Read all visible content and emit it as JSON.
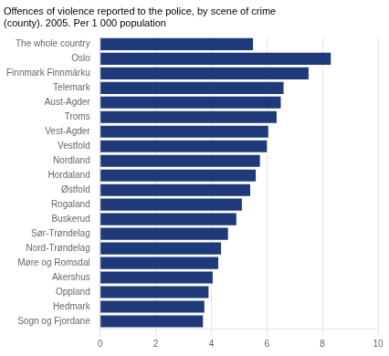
{
  "chart_data": {
    "type": "bar",
    "orientation": "horizontal",
    "title": [
      "Offences of violence reported to the police, by scene of crime",
      "(county). 2005. Per 1 000 population"
    ],
    "categories": [
      "Sogn og Fjordane",
      "Hedmark",
      "Oppland",
      "Akershus",
      "Møre og Romsdal",
      "Nord-Trøndelag",
      "Sør-Trøndelag",
      "Buskerud",
      "Rogaland",
      "Østfold",
      "Hordaland",
      "Nordland",
      "Vestfold",
      "Vest-Agder",
      "Troms",
      "Aust-Agder",
      "Telemark",
      "Finnmark Finnmárku",
      "Oslo",
      "The whole country"
    ],
    "values": [
      3.7,
      3.75,
      3.9,
      4.05,
      4.25,
      4.35,
      4.6,
      4.9,
      5.1,
      5.4,
      5.6,
      5.75,
      6.0,
      6.05,
      6.35,
      6.5,
      6.6,
      7.5,
      8.3,
      5.5
    ],
    "color": "#1f3a7a",
    "xlim": [
      0,
      10
    ],
    "xticks": [
      0,
      2,
      4,
      6,
      8,
      10
    ],
    "grid": true
  }
}
